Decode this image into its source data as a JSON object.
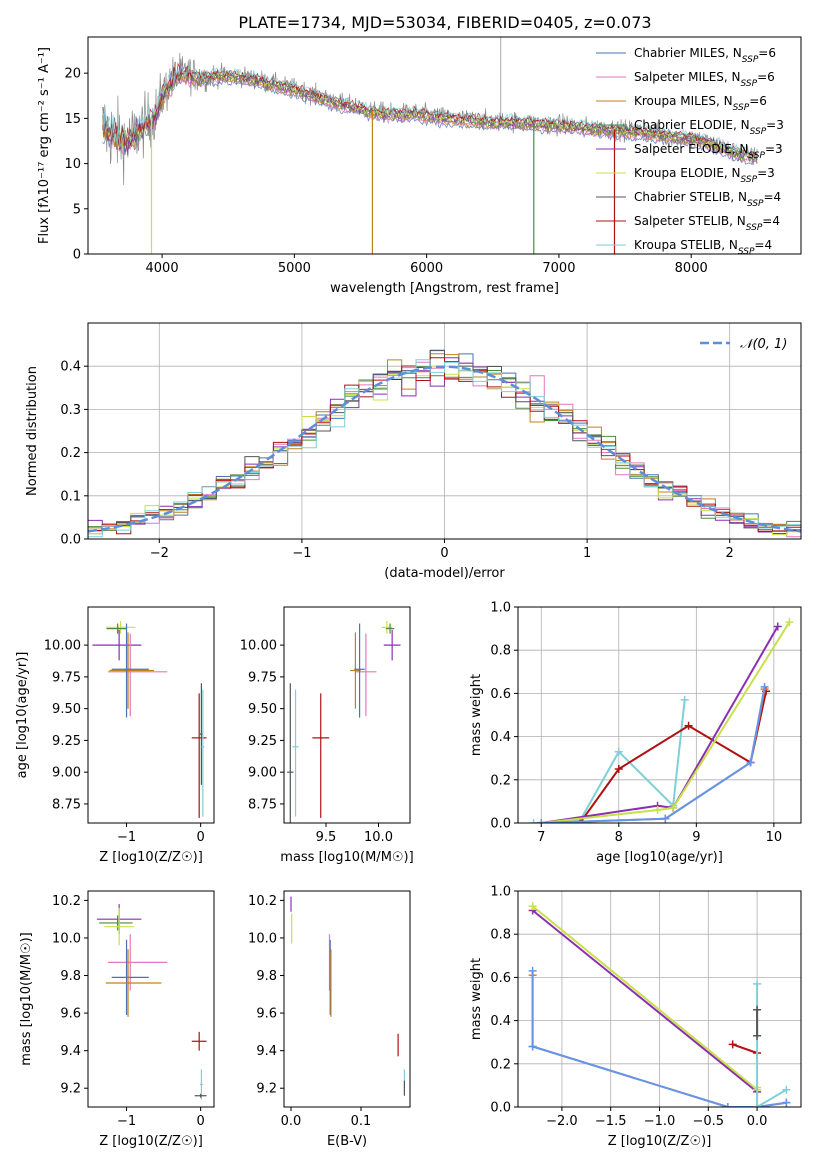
{
  "figure_title": "PLATE=1734, MJD=53034, FIBERID=0405, z=0.073",
  "colors": {
    "chabrier_miles": "#4c72b0",
    "salpeter_miles": "#e377c2",
    "kroupa_miles": "#c0801a",
    "chabrier_elodie": "#4f8a3a",
    "salpeter_elodie": "#8b2fb0",
    "kroupa_elodie": "#c8e04a",
    "chabrier_stelib": "#555555",
    "salpeter_stelib": "#b01010",
    "kroupa_stelib": "#7ecfd8",
    "observed": "#888888",
    "normal_curve": "#5b8fd9",
    "mass_orange": "#e07b39",
    "mass_blue": "#6495ed"
  },
  "chart_data": [
    {
      "type": "line",
      "title": "PLATE=1734, MJD=53034, FIBERID=0405, z=0.073",
      "xlabel": "wavelength [Angstrom, rest frame]",
      "ylabel": "Flux [fλ10⁻¹⁷ erg cm⁻² s⁻¹ A⁻¹]",
      "xlim": [
        3440,
        8830
      ],
      "ylim": [
        0,
        24
      ],
      "xticks": [
        4000,
        5000,
        6000,
        7000,
        8000
      ],
      "yticks": [
        0,
        5,
        10,
        15,
        20
      ],
      "legend_position": "top-right",
      "grid": false,
      "legend": [
        "Chabrier MILES, N_SSP=6",
        "Salpeter MILES, N_SSP=6",
        "Kroupa MILES, N_SSP=6",
        "Chabrier ELODIE, N_SSP=3",
        "Salpeter ELODIE, N_SSP=3",
        "Kroupa ELODIE, N_SSP=3",
        "Chabrier STELIB, N_SSP=4",
        "Salpeter STELIB, N_SSP=4",
        "Kroupa STELIB, N_SSP=4"
      ],
      "spectrum": {
        "x": [
          3550,
          3650,
          3750,
          3850,
          3950,
          4000,
          4100,
          4200,
          4300,
          4400,
          4500,
          4600,
          4700,
          4800,
          4900,
          5000,
          5100,
          5200,
          5300,
          5400,
          5500,
          5600,
          5700,
          5800,
          5900,
          6000,
          6100,
          6200,
          6300,
          6400,
          6500,
          6600,
          6700,
          6800,
          6900,
          7000,
          7100,
          7200,
          7300,
          7400,
          7500,
          7600,
          7700,
          7800,
          7900,
          8000,
          8100,
          8200,
          8300,
          8400,
          8500
        ],
        "y": [
          14.0,
          13.0,
          12.5,
          14.0,
          15.5,
          17.5,
          19.8,
          20.0,
          19.5,
          19.8,
          19.8,
          19.6,
          19.4,
          19.0,
          18.6,
          18.3,
          17.9,
          17.3,
          16.9,
          16.5,
          16.2,
          15.8,
          15.6,
          15.5,
          15.6,
          15.4,
          15.2,
          15.0,
          14.9,
          14.8,
          14.6,
          14.7,
          14.6,
          14.5,
          14.4,
          14.3,
          14.2,
          14.0,
          13.9,
          13.8,
          13.7,
          13.6,
          13.4,
          13.2,
          13.0,
          12.8,
          12.5,
          12.0,
          11.4,
          11.0,
          10.7
        ]
      },
      "noise_amplitude_blue": 3.2,
      "noise_amplitude_red": 0.8,
      "dropouts": [
        {
          "x": 3920,
          "y_min": 0,
          "series": "kroupa_elodie"
        },
        {
          "x": 5590,
          "y_min": 0,
          "series": "kroupa_miles"
        },
        {
          "x": 6810,
          "y_min": 0,
          "series": "chabrier_elodie"
        },
        {
          "x": 7420,
          "y_min": 0,
          "series": "salpeter_stelib"
        }
      ],
      "sky_line": {
        "x": 6560,
        "y_max": 24
      }
    },
    {
      "type": "histogram",
      "xlabel": "(data-model)/error",
      "ylabel": "Normed distribution",
      "xlim": [
        -2.5,
        2.5
      ],
      "ylim": [
        0,
        0.5
      ],
      "xticks": [
        -2,
        -1,
        0,
        1,
        2
      ],
      "yticks": [
        0.0,
        0.1,
        0.2,
        0.3,
        0.4
      ],
      "grid": true,
      "legend": [
        "𝒩(0, 1)"
      ],
      "legend_position": "top-right",
      "bin_width": 0.1,
      "bin_start": -2.5,
      "normal_curve": {
        "mean": 0,
        "sigma": 1
      }
    },
    {
      "type": "errorbar",
      "xlabel": "Z [log10(Z/Z☉)]",
      "ylabel": "age  [log10(age/yr)]",
      "xlim": [
        -1.52,
        0.18
      ],
      "ylim": [
        8.6,
        10.3
      ],
      "xticks": [
        -1,
        0
      ],
      "yticks": [
        8.75,
        9.0,
        9.25,
        9.5,
        9.75,
        10.0
      ],
      "points": [
        {
          "series": "kroupa_elodie",
          "x": -1.08,
          "y": 10.14,
          "xerr": [
            0.2,
            0.2
          ],
          "yerr": [
            0.05,
            0.05
          ]
        },
        {
          "series": "chabrier_elodie",
          "x": -1.12,
          "y": 10.13,
          "xerr": [
            0.15,
            0.12
          ],
          "yerr": [
            0.04,
            0.04
          ]
        },
        {
          "series": "salpeter_elodie",
          "x": -1.1,
          "y": 10.0,
          "xerr": [
            0.36,
            0.3
          ],
          "yerr": [
            0.12,
            0.12
          ]
        },
        {
          "series": "salpeter_miles",
          "x": -0.95,
          "y": 9.79,
          "xerr": [
            0.3,
            0.5
          ],
          "yerr": [
            0.35,
            0.3
          ]
        },
        {
          "series": "kroupa_miles",
          "x": -0.98,
          "y": 9.8,
          "xerr": [
            0.25,
            0.35
          ],
          "yerr": [
            0.3,
            0.3
          ]
        },
        {
          "series": "chabrier_miles",
          "x": -1.0,
          "y": 9.81,
          "xerr": [
            0.2,
            0.3
          ],
          "yerr": [
            0.38,
            0.36
          ]
        },
        {
          "series": "salpeter_stelib",
          "x": -0.02,
          "y": 9.27,
          "xerr": [
            0.1,
            0.1
          ],
          "yerr": [
            0.63,
            0.35
          ]
        },
        {
          "series": "chabrier_stelib",
          "x": 0.01,
          "y": 9.3,
          "xerr": [
            0.02,
            0.02
          ],
          "yerr": [
            0.4,
            0.4
          ]
        },
        {
          "series": "kroupa_stelib",
          "x": 0.03,
          "y": 9.2,
          "xerr": [
            0.02,
            0.02
          ],
          "yerr": [
            0.55,
            0.45
          ]
        }
      ]
    },
    {
      "type": "errorbar",
      "xlabel": "mass [log10(M/M☉)]",
      "ylabel": "",
      "xlim": [
        9.1,
        10.3
      ],
      "ylim": [
        8.6,
        10.3
      ],
      "xticks": [
        9.5,
        10.0
      ],
      "yticks": [
        8.75,
        9.0,
        9.25,
        9.5,
        9.75,
        10.0
      ],
      "points": [
        {
          "series": "kroupa_elodie",
          "x": 10.08,
          "y": 10.14,
          "xerr": [
            0.05,
            0.05
          ],
          "yerr": [
            0.05,
            0.05
          ]
        },
        {
          "series": "chabrier_elodie",
          "x": 10.11,
          "y": 10.13,
          "xerr": [
            0.04,
            0.04
          ],
          "yerr": [
            0.04,
            0.04
          ]
        },
        {
          "series": "salpeter_elodie",
          "x": 10.13,
          "y": 10.0,
          "xerr": [
            0.08,
            0.08
          ],
          "yerr": [
            0.12,
            0.12
          ]
        },
        {
          "series": "salpeter_miles",
          "x": 9.88,
          "y": 9.79,
          "xerr": [
            0.1,
            0.1
          ],
          "yerr": [
            0.35,
            0.3
          ]
        },
        {
          "series": "kroupa_miles",
          "x": 9.78,
          "y": 9.8,
          "xerr": [
            0.05,
            0.05
          ],
          "yerr": [
            0.3,
            0.3
          ]
        },
        {
          "series": "chabrier_miles",
          "x": 9.82,
          "y": 9.81,
          "xerr": [
            0.05,
            0.05
          ],
          "yerr": [
            0.38,
            0.36
          ]
        },
        {
          "series": "salpeter_stelib",
          "x": 9.45,
          "y": 9.27,
          "xerr": [
            0.08,
            0.08
          ],
          "yerr": [
            0.63,
            0.35
          ]
        },
        {
          "series": "chabrier_stelib",
          "x": 9.16,
          "y": 9.0,
          "xerr": [
            0.03,
            0.03
          ],
          "yerr": [
            0.4,
            0.7
          ]
        },
        {
          "series": "kroupa_stelib",
          "x": 9.21,
          "y": 9.2,
          "xerr": [
            0.03,
            0.03
          ],
          "yerr": [
            0.55,
            0.45
          ]
        }
      ]
    },
    {
      "type": "line",
      "xlabel": "age  [log10(age/yr)]",
      "ylabel": "mass weight",
      "xlim": [
        6.7,
        10.35
      ],
      "ylim": [
        0,
        1.0
      ],
      "xticks": [
        7,
        8,
        9,
        10
      ],
      "yticks": [
        0.0,
        0.2,
        0.4,
        0.6,
        0.8,
        1.0
      ],
      "grid": true,
      "series": [
        {
          "color_key": "kroupa_stelib",
          "x": [
            6.9,
            7.5,
            8.0,
            8.7,
            8.85
          ],
          "y": [
            0.0,
            0.01,
            0.33,
            0.08,
            0.57
          ]
        },
        {
          "color_key": "salpeter_stelib",
          "x": [
            7.5,
            8.0,
            8.9,
            9.7,
            9.9
          ],
          "y": [
            0.0,
            0.25,
            0.45,
            0.28,
            0.61
          ]
        },
        {
          "color_key": "salpeter_elodie",
          "x": [
            7.0,
            8.5,
            8.7,
            10.05
          ],
          "y": [
            0.0,
            0.08,
            0.07,
            0.91
          ]
        },
        {
          "color_key": "kroupa_elodie",
          "x": [
            7.0,
            8.5,
            8.7,
            10.2
          ],
          "y": [
            0.0,
            0.06,
            0.07,
            0.93
          ]
        },
        {
          "color_key": "mass_orange",
          "x": [
            7.0,
            8.6,
            9.7,
            9.88
          ],
          "y": [
            0.0,
            0.02,
            0.28,
            0.62
          ]
        },
        {
          "color_key": "mass_blue",
          "x": [
            7.0,
            8.6,
            9.7,
            9.88
          ],
          "y": [
            0.0,
            0.02,
            0.28,
            0.63
          ]
        }
      ]
    },
    {
      "type": "errorbar",
      "xlabel": "Z [log10(Z/Z☉)]",
      "ylabel": "mass [log10(M/M☉)]",
      "xlim": [
        -1.52,
        0.18
      ],
      "ylim": [
        9.1,
        10.25
      ],
      "xticks": [
        -1,
        0
      ],
      "yticks": [
        9.2,
        9.4,
        9.6,
        9.8,
        10.0,
        10.2
      ],
      "points": [
        {
          "series": "salpeter_elodie",
          "x": -1.1,
          "y": 10.1,
          "xerr": [
            0.3,
            0.3
          ],
          "yerr": [
            0.08,
            0.08
          ]
        },
        {
          "series": "chabrier_elodie",
          "x": -1.12,
          "y": 10.08,
          "xerr": [
            0.25,
            0.2
          ],
          "yerr": [
            0.04,
            0.04
          ]
        },
        {
          "series": "kroupa_elodie",
          "x": -1.1,
          "y": 10.06,
          "xerr": [
            0.2,
            0.2
          ],
          "yerr": [
            0.1,
            0.1
          ]
        },
        {
          "series": "salpeter_miles",
          "x": -0.95,
          "y": 9.87,
          "xerr": [
            0.3,
            0.5
          ],
          "yerr": [
            0.15,
            0.15
          ]
        },
        {
          "series": "chabrier_miles",
          "x": -1.0,
          "y": 9.79,
          "xerr": [
            0.2,
            0.3
          ],
          "yerr": [
            0.2,
            0.2
          ]
        },
        {
          "series": "kroupa_miles",
          "x": -0.98,
          "y": 9.76,
          "xerr": [
            0.3,
            0.45
          ],
          "yerr": [
            0.18,
            0.18
          ]
        },
        {
          "series": "salpeter_stelib",
          "x": -0.02,
          "y": 9.45,
          "xerr": [
            0.1,
            0.1
          ],
          "yerr": [
            0.05,
            0.05
          ]
        },
        {
          "series": "kroupa_stelib",
          "x": 0.01,
          "y": 9.22,
          "xerr": [
            0.02,
            0.02
          ],
          "yerr": [
            0.08,
            0.08
          ]
        },
        {
          "series": "chabrier_stelib",
          "x": 0.0,
          "y": 9.16,
          "xerr": [
            0.08,
            0.08
          ],
          "yerr": [
            0.01,
            0.01
          ]
        }
      ]
    },
    {
      "type": "errorbar",
      "xlabel": "E(B-V)",
      "ylabel": "",
      "xlim": [
        -0.01,
        0.17
      ],
      "ylim": [
        9.1,
        10.25
      ],
      "xticks": [
        0.0,
        0.1
      ],
      "yticks": [
        9.2,
        9.4,
        9.6,
        9.8,
        10.0,
        10.2
      ],
      "points": [
        {
          "series": "salpeter_elodie",
          "x": 0.0,
          "y": 10.18,
          "xerr": [
            0,
            0
          ],
          "yerr": [
            0.04,
            0.04
          ]
        },
        {
          "series": "kroupa_elodie",
          "x": 0.001,
          "y": 10.05,
          "xerr": [
            0,
            0
          ],
          "yerr": [
            0.08,
            0.08
          ]
        },
        {
          "series": "salpeter_miles",
          "x": 0.055,
          "y": 9.87,
          "xerr": [
            0,
            0
          ],
          "yerr": [
            0.15,
            0.15
          ]
        },
        {
          "series": "chabrier_miles",
          "x": 0.056,
          "y": 9.79,
          "xerr": [
            0,
            0
          ],
          "yerr": [
            0.2,
            0.2
          ]
        },
        {
          "series": "kroupa_miles",
          "x": 0.057,
          "y": 9.76,
          "xerr": [
            0,
            0
          ],
          "yerr": [
            0.18,
            0.18
          ]
        },
        {
          "series": "salpeter_stelib",
          "x": 0.153,
          "y": 9.43,
          "xerr": [
            0,
            0
          ],
          "yerr": [
            0.06,
            0.06
          ]
        },
        {
          "series": "kroupa_stelib",
          "x": 0.162,
          "y": 9.25,
          "xerr": [
            0,
            0
          ],
          "yerr": [
            0.05,
            0.05
          ]
        },
        {
          "series": "chabrier_stelib",
          "x": 0.162,
          "y": 9.2,
          "xerr": [
            0,
            0
          ],
          "yerr": [
            0.04,
            0.04
          ]
        }
      ]
    },
    {
      "type": "line",
      "xlabel": "Z [log10(Z/Z☉)]",
      "ylabel": "mass weight",
      "xlim": [
        -2.45,
        0.45
      ],
      "ylim": [
        0,
        1.0
      ],
      "xticks": [
        -2.0,
        -1.5,
        -1.0,
        -0.5,
        0.0
      ],
      "yticks": [
        0.0,
        0.2,
        0.4,
        0.6,
        0.8,
        1.0
      ],
      "grid": true,
      "series": [
        {
          "color_key": "salpeter_elodie",
          "x": [
            -2.3,
            0.0,
            0.0
          ],
          "y": [
            0.91,
            0.07,
            0.08
          ]
        },
        {
          "color_key": "kroupa_elodie",
          "x": [
            -2.3,
            0.0,
            0.0
          ],
          "y": [
            0.93,
            0.08,
            0.09
          ]
        },
        {
          "color_key": "mass_orange",
          "x": [
            -2.3,
            -2.3,
            -0.3,
            0.0,
            0.3
          ],
          "y": [
            0.61,
            0.28,
            0.0,
            0.0,
            0.02
          ]
        },
        {
          "color_key": "mass_blue",
          "x": [
            -2.3,
            -2.3,
            -0.3,
            0.0,
            0.3
          ],
          "y": [
            0.63,
            0.28,
            0.0,
            0.0,
            0.02
          ]
        },
        {
          "color_key": "salpeter_stelib",
          "x": [
            -0.25,
            0.0
          ],
          "y": [
            0.29,
            0.25
          ]
        },
        {
          "color_key": "kroupa_stelib",
          "x": [
            0.0,
            0.0,
            0.0,
            0.3
          ],
          "y": [
            0.57,
            0.33,
            0.0,
            0.08
          ]
        },
        {
          "color_key": "chabrier_stelib",
          "x": [
            0.0,
            0.0
          ],
          "y": [
            0.45,
            0.33
          ]
        }
      ]
    }
  ]
}
